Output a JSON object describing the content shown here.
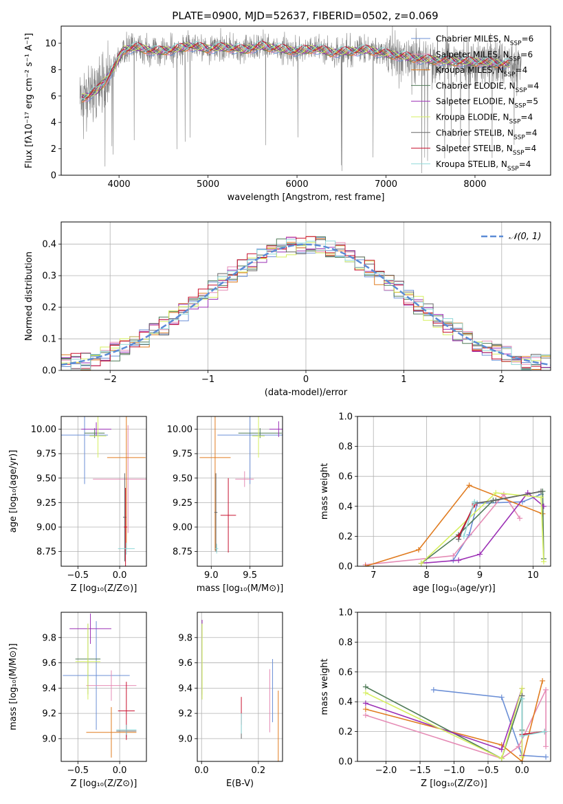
{
  "figure_title": "PLATE=0900, MJD=52637, FIBERID=0502, z=0.069",
  "colors": {
    "c1": "#6b8fd6",
    "c2": "#e58bb5",
    "c3": "#e07b1f",
    "c4": "#4f7a57",
    "c5": "#9b2fb5",
    "c6": "#d6ef5f",
    "c7": "#666666",
    "c8": "#c8102e",
    "c9": "#8fd8d8",
    "data": "#808080",
    "normal": "#5b8bd6"
  },
  "chart_data": [
    {
      "id": "spectrum",
      "type": "line",
      "title": "PLATE=0900, MJD=52637, FIBERID=0502, z=0.069",
      "xlabel": "wavelength [Angstrom, rest frame]",
      "ylabel": "Flux [fλ10⁻¹⁷ erg cm⁻² s⁻¹ A⁻¹]",
      "xlim": [
        3350,
        8850
      ],
      "ylim": [
        0,
        11.3
      ],
      "xticks": [
        "4000",
        "5000",
        "6000",
        "7000",
        "8000"
      ],
      "xtick_values": [
        4000,
        5000,
        6000,
        7000,
        8000
      ],
      "yticks": [
        "0",
        "2",
        "4",
        "6",
        "8",
        "10"
      ],
      "ytick_values": [
        0,
        2,
        4,
        6,
        8,
        10
      ],
      "grid": false,
      "legend_position": "top-right",
      "continuum": {
        "x": [
          3550,
          3650,
          3750,
          3850,
          3950,
          4050,
          4200,
          4400,
          4600,
          4800,
          5000,
          5200,
          5400,
          5600,
          5800,
          6000,
          6200,
          6400,
          6600,
          6800,
          7000,
          7200,
          7400,
          7600,
          7800,
          8000,
          8200,
          8400
        ],
        "y": [
          5.8,
          6.0,
          6.4,
          7.2,
          8.2,
          9.5,
          9.7,
          9.4,
          9.5,
          9.8,
          9.6,
          9.7,
          9.5,
          9.8,
          9.6,
          9.4,
          9.6,
          9.3,
          9.4,
          9.5,
          9.2,
          9.0,
          8.8,
          8.7,
          8.6,
          8.6,
          8.5,
          8.4
        ]
      },
      "series": [
        {
          "name": "Chabrier MILES, N_SSP=6",
          "color_key": "c1"
        },
        {
          "name": "Salpeter MILES, N_SSP=6",
          "color_key": "c2"
        },
        {
          "name": "Kroupa MILES, N_SSP=4",
          "color_key": "c3"
        },
        {
          "name": "Chabrier ELODIE, N_SSP=4",
          "color_key": "c4"
        },
        {
          "name": "Salpeter ELODIE, N_SSP=5",
          "color_key": "c5"
        },
        {
          "name": "Kroupa ELODIE, N_SSP=4",
          "color_key": "c6"
        },
        {
          "name": "Chabrier STELIB, N_SSP=4",
          "color_key": "c7"
        },
        {
          "name": "Salpeter STELIB, N_SSP=4",
          "color_key": "c8"
        },
        {
          "name": "Kroupa STELIB, N_SSP=4",
          "color_key": "c9"
        }
      ]
    },
    {
      "id": "residuals",
      "type": "area",
      "xlabel": "(data-model)/error",
      "ylabel": "Normed distribution",
      "xlim": [
        -2.5,
        2.5
      ],
      "ylim": [
        0,
        0.47
      ],
      "xticks": [
        "−2",
        "−1",
        "0",
        "1",
        "2"
      ],
      "xtick_values": [
        -2,
        -1,
        0,
        1,
        2
      ],
      "yticks": [
        "0.0",
        "0.1",
        "0.2",
        "0.3",
        "0.4"
      ],
      "ytick_values": [
        0,
        0.1,
        0.2,
        0.3,
        0.4
      ],
      "grid": true,
      "legend_position": "top-right",
      "normal_label": "𝒩(0, 1)",
      "bin_width": 0.1,
      "series_color_keys": [
        "c1",
        "c2",
        "c3",
        "c4",
        "c5",
        "c6",
        "c7",
        "c8",
        "c9"
      ]
    },
    {
      "id": "age_vs_Z",
      "type": "scatter",
      "xlabel": "Z [log₁₀(Z/Z⊙)]",
      "ylabel": "age  [log₁₀(age/yr)]",
      "xlim": [
        -0.7,
        0.32
      ],
      "ylim": [
        8.6,
        10.13
      ],
      "xticks": [
        "−0.5",
        "0.0"
      ],
      "xtick_values": [
        -0.5,
        0.0
      ],
      "yticks": [
        "8.75",
        "9.00",
        "9.25",
        "9.50",
        "9.75",
        "10.00"
      ],
      "ytick_values": [
        8.75,
        9.0,
        9.25,
        9.5,
        9.75,
        10.0
      ],
      "grid": true,
      "points": [
        {
          "c": "c1",
          "x": -0.42,
          "y": 9.94,
          "xerr": 0.28,
          "yerr": 0.5
        },
        {
          "c": "c2",
          "x": 0.1,
          "y": 9.49,
          "xerr": 0.42,
          "yerr": 0.55
        },
        {
          "c": "c3",
          "x": 0.08,
          "y": 9.71,
          "xerr": 0.23,
          "yerr": 0.93
        },
        {
          "c": "c4",
          "x": -0.3,
          "y": 9.96,
          "xerr": 0.12,
          "yerr": 0.05
        },
        {
          "c": "c5",
          "x": -0.28,
          "y": 10.0,
          "xerr": 0.18,
          "yerr": 0.07
        },
        {
          "c": "c6",
          "x": -0.26,
          "y": 9.93,
          "xerr": 0.1,
          "yerr": 0.22
        },
        {
          "c": "c7",
          "x": 0.06,
          "y": 9.1,
          "xerr": 0.02,
          "yerr": 0.45
        },
        {
          "c": "c8",
          "x": 0.07,
          "y": 9.0,
          "xerr": 0.02,
          "yerr": 0.4
        },
        {
          "c": "c9",
          "x": 0.08,
          "y": 8.78,
          "xerr": 0.1,
          "yerr": 0.06
        }
      ]
    },
    {
      "id": "age_vs_mass",
      "type": "scatter",
      "xlabel": "mass [log₁₀(M/M⊙)]",
      "ylabel": "",
      "xlim": [
        8.82,
        9.92
      ],
      "ylim": [
        8.6,
        10.13
      ],
      "xticks": [
        "9.0",
        "9.5"
      ],
      "xtick_values": [
        9.0,
        9.5
      ],
      "yticks": [
        "8.75",
        "9.00",
        "9.25",
        "9.50",
        "9.75",
        "10.00"
      ],
      "ytick_values": [
        8.75,
        9.0,
        9.25,
        9.5,
        9.75,
        10.0
      ],
      "grid": true,
      "points": [
        {
          "c": "c1",
          "x": 9.5,
          "y": 9.94,
          "xerr": 0.42,
          "yerr": 0.5
        },
        {
          "c": "c2",
          "x": 9.43,
          "y": 9.49,
          "xerr": 0.12,
          "yerr": 0.08
        },
        {
          "c": "c3",
          "x": 9.05,
          "y": 9.71,
          "xerr": 0.2,
          "yerr": 0.95
        },
        {
          "c": "c4",
          "x": 9.63,
          "y": 9.96,
          "xerr": 0.28,
          "yerr": 0.05
        },
        {
          "c": "c5",
          "x": 9.87,
          "y": 10.0,
          "xerr": 0.12,
          "yerr": 0.08
        },
        {
          "c": "c6",
          "x": 9.61,
          "y": 9.93,
          "xerr": 0.08,
          "yerr": 0.22
        },
        {
          "c": "c7",
          "x": 9.06,
          "y": 9.15,
          "xerr": 0.02,
          "yerr": 0.4
        },
        {
          "c": "c8",
          "x": 9.22,
          "y": 9.12,
          "xerr": 0.1,
          "yerr": 0.38
        },
        {
          "c": "c9",
          "x": 9.07,
          "y": 8.78,
          "xerr": 0.02,
          "yerr": 0.05
        }
      ]
    },
    {
      "id": "weight_vs_age",
      "type": "line",
      "xlabel": "age  [log₁₀(age/yr)]",
      "ylabel": "mass weight",
      "xlim": [
        6.7,
        10.33
      ],
      "ylim": [
        0,
        1.0
      ],
      "xticks": [
        "7",
        "8",
        "9",
        "10"
      ],
      "xtick_values": [
        7,
        8,
        9,
        10
      ],
      "yticks": [
        "0.0",
        "0.2",
        "0.4",
        "0.6",
        "0.8",
        "1.0"
      ],
      "ytick_values": [
        0,
        0.2,
        0.4,
        0.6,
        0.8,
        1.0
      ],
      "grid": true,
      "series": [
        {
          "c": "c1",
          "x": [
            8.5,
            8.8,
            8.95,
            9.8,
            10.15
          ],
          "y": [
            0.04,
            0.21,
            0.42,
            0.43,
            0.48
          ]
        },
        {
          "c": "c2",
          "x": [
            6.85,
            8.5,
            9.45,
            9.75
          ],
          "y": [
            0.01,
            0.07,
            0.48,
            0.32
          ]
        },
        {
          "c": "c3",
          "x": [
            6.85,
            7.85,
            8.8,
            10.18
          ],
          "y": [
            0.0,
            0.11,
            0.54,
            0.35
          ]
        },
        {
          "c": "c4",
          "x": [
            7.9,
            8.6,
            9.25,
            10.18,
            10.2
          ],
          "y": [
            0.02,
            0.21,
            0.44,
            0.5,
            0.05
          ]
        },
        {
          "c": "c5",
          "x": [
            7.9,
            8.6,
            9.0,
            9.9,
            10.2
          ],
          "y": [
            0.02,
            0.04,
            0.08,
            0.49,
            0.4
          ]
        },
        {
          "c": "c6",
          "x": [
            7.9,
            9.3,
            10.15,
            10.2
          ],
          "y": [
            0.02,
            0.49,
            0.46,
            0.03
          ]
        },
        {
          "c": "c7",
          "x": [
            8.6,
            8.9,
            9.3,
            10.15
          ],
          "y": [
            0.18,
            0.42,
            0.44,
            0.5
          ]
        },
        {
          "c": "c8",
          "x": [
            8.6,
            8.9
          ],
          "y": [
            0.2,
            0.41
          ]
        },
        {
          "c": "c9",
          "x": [
            8.7,
            8.9
          ],
          "y": [
            0.2,
            0.43
          ]
        }
      ]
    },
    {
      "id": "mass_vs_Z",
      "type": "scatter",
      "xlabel": "Z [log₁₀(Z/Z⊙)]",
      "ylabel": "mass [log₁₀(M/M⊙)]",
      "xlim": [
        -0.7,
        0.32
      ],
      "ylim": [
        8.82,
        10.0
      ],
      "xticks": [
        "−0.5",
        "0.0"
      ],
      "xtick_values": [
        -0.5,
        0.0
      ],
      "yticks": [
        "9.0",
        "9.2",
        "9.4",
        "9.6",
        "9.8"
      ],
      "ytick_values": [
        9.0,
        9.2,
        9.4,
        9.6,
        9.8
      ],
      "grid": true,
      "points": [
        {
          "c": "c1",
          "x": -0.28,
          "y": 9.5,
          "xerr": 0.4,
          "yerr": 0.43
        },
        {
          "c": "c2",
          "x": -0.1,
          "y": 9.42,
          "xerr": 0.3,
          "yerr": 0.12
        },
        {
          "c": "c3",
          "x": -0.1,
          "y": 9.05,
          "xerr": 0.3,
          "yerr": 0.2
        },
        {
          "c": "c4",
          "x": -0.38,
          "y": 9.63,
          "xerr": 0.15,
          "yerr": 0.28
        },
        {
          "c": "c5",
          "x": -0.35,
          "y": 9.87,
          "xerr": 0.25,
          "yerr": 0.12
        },
        {
          "c": "c6",
          "x": -0.38,
          "y": 9.61,
          "xerr": 0.15,
          "yerr": 0.3
        },
        {
          "c": "c7",
          "x": 0.08,
          "y": 9.06,
          "xerr": 0.12,
          "yerr": 0.05
        },
        {
          "c": "c8",
          "x": 0.08,
          "y": 9.22,
          "xerr": 0.1,
          "yerr": 0.23
        },
        {
          "c": "c9",
          "x": 0.08,
          "y": 9.07,
          "xerr": 0.12,
          "yerr": 0.04
        }
      ]
    },
    {
      "id": "mass_vs_ebv",
      "type": "scatter",
      "xlabel": "E(B-V)",
      "ylabel": "",
      "xlim": [
        -0.015,
        0.285
      ],
      "ylim": [
        8.82,
        10.0
      ],
      "xticks": [
        "0.0",
        "0.2"
      ],
      "xtick_values": [
        0.0,
        0.2
      ],
      "yticks": [
        "9.0",
        "9.2",
        "9.4",
        "9.6",
        "9.8"
      ],
      "ytick_values": [
        9.0,
        9.2,
        9.4,
        9.6,
        9.8
      ],
      "grid": true,
      "points": [
        {
          "c": "c1",
          "x": 0.25,
          "y": 9.38,
          "xerr": 0,
          "yerr": 0.25
        },
        {
          "c": "c2",
          "x": 0.24,
          "y": 9.3,
          "xerr": 0,
          "yerr": 0.25
        },
        {
          "c": "c3",
          "x": 0.27,
          "y": 9.05,
          "xerr": 0,
          "yerr": 0.33
        },
        {
          "c": "c4",
          "x": 0.002,
          "y": 9.63,
          "xerr": 0,
          "yerr": 0.28
        },
        {
          "c": "c5",
          "x": 0.002,
          "y": 9.87,
          "xerr": 0,
          "yerr": 0.07
        },
        {
          "c": "c6",
          "x": 0.002,
          "y": 9.61,
          "xerr": 0,
          "yerr": 0.3
        },
        {
          "c": "c7",
          "x": 0.14,
          "y": 9.1,
          "xerr": 0,
          "yerr": 0.1
        },
        {
          "c": "c8",
          "x": 0.14,
          "y": 9.22,
          "xerr": 0,
          "yerr": 0.11
        },
        {
          "c": "c9",
          "x": 0.14,
          "y": 9.12,
          "xerr": 0,
          "yerr": 0.08
        }
      ]
    },
    {
      "id": "weight_vs_Z",
      "type": "line",
      "xlabel": "Z [log₁₀(Z/Z⊙)]",
      "ylabel": "mass weight",
      "xlim": [
        -2.42,
        0.42
      ],
      "ylim": [
        0,
        1.0
      ],
      "xticks": [
        "−2.0",
        "−1.5",
        "−1.0",
        "−0.5",
        "0.0"
      ],
      "xtick_values": [
        -2.0,
        -1.5,
        -1.0,
        -0.5,
        0.0
      ],
      "yticks": [
        "0.0",
        "0.2",
        "0.4",
        "0.6",
        "0.8",
        "1.0"
      ],
      "ytick_values": [
        0,
        0.2,
        0.4,
        0.6,
        0.8,
        1.0
      ],
      "grid": true,
      "series": [
        {
          "c": "c1",
          "x": [
            -1.3,
            -0.3,
            0.0,
            0.35
          ],
          "y": [
            0.48,
            0.43,
            0.04,
            0.03
          ]
        },
        {
          "c": "c2",
          "x": [
            -2.3,
            -0.3,
            -0.05,
            0.35,
            0.35
          ],
          "y": [
            0.31,
            0.02,
            0.1,
            0.48,
            0.1
          ]
        },
        {
          "c": "c3",
          "x": [
            -2.3,
            -0.3,
            0.0,
            0.3
          ],
          "y": [
            0.35,
            0.11,
            0.0,
            0.54
          ]
        },
        {
          "c": "c4",
          "x": [
            -2.3,
            -0.3,
            0.0,
            0.0
          ],
          "y": [
            0.5,
            0.02,
            0.44,
            0.21
          ]
        },
        {
          "c": "c5",
          "x": [
            -2.3,
            -0.3,
            0.0,
            0.0
          ],
          "y": [
            0.39,
            0.08,
            0.49,
            0.04
          ]
        },
        {
          "c": "c6",
          "x": [
            -2.3,
            -0.3,
            0.0,
            0.0
          ],
          "y": [
            0.46,
            0.02,
            0.49,
            0.03
          ]
        },
        {
          "c": "c7",
          "x": [
            0.0,
            0.0,
            0.33
          ],
          "y": [
            0.44,
            0.18,
            0.2
          ]
        },
        {
          "c": "c8",
          "x": [
            0.0,
            0.33
          ],
          "y": [
            0.18,
            0.2
          ]
        },
        {
          "c": "c9",
          "x": [
            0.0,
            0.0,
            0.33
          ],
          "y": [
            0.42,
            0.17,
            0.2
          ]
        }
      ]
    }
  ]
}
